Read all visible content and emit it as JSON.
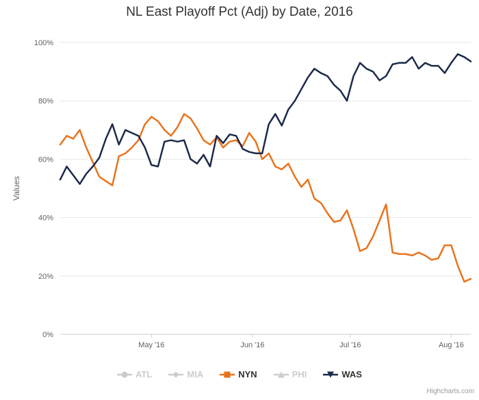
{
  "chart_data": {
    "type": "line",
    "title": "NL East Playoff Pct (Adj) by Date, 2016",
    "ylabel": "Values",
    "ylim": [
      0,
      100
    ],
    "grid": "horizontal",
    "legend_position": "bottom",
    "credits": "Highcharts.com",
    "yticks": [
      {
        "value": 0,
        "label": "0%"
      },
      {
        "value": 20,
        "label": "20%"
      },
      {
        "value": 40,
        "label": "40%"
      },
      {
        "value": 60,
        "label": "60%"
      },
      {
        "value": 80,
        "label": "80%"
      },
      {
        "value": 100,
        "label": "100%"
      }
    ],
    "xticks": [
      {
        "day": 28,
        "label": "May '16"
      },
      {
        "day": 59,
        "label": "Jun '16"
      },
      {
        "day": 89,
        "label": "Jul '16"
      },
      {
        "day": 120,
        "label": "Aug '16"
      }
    ],
    "dates": [
      "Apr 3",
      "Apr 5",
      "Apr 7",
      "Apr 9",
      "Apr 11",
      "Apr 13",
      "Apr 15",
      "Apr 17",
      "Apr 19",
      "Apr 21",
      "Apr 23",
      "Apr 25",
      "Apr 27",
      "Apr 29",
      "May 1",
      "May 3",
      "May 5",
      "May 7",
      "May 9",
      "May 11",
      "May 13",
      "May 15",
      "May 17",
      "May 19",
      "May 21",
      "May 23",
      "May 25",
      "May 27",
      "May 29",
      "May 31",
      "Jun 2",
      "Jun 4",
      "Jun 6",
      "Jun 8",
      "Jun 10",
      "Jun 12",
      "Jun 14",
      "Jun 16",
      "Jun 18",
      "Jun 20",
      "Jun 22",
      "Jun 24",
      "Jun 26",
      "Jun 28",
      "Jun 30",
      "Jul 2",
      "Jul 4",
      "Jul 6",
      "Jul 8",
      "Jul 10",
      "Jul 12",
      "Jul 14",
      "Jul 16",
      "Jul 18",
      "Jul 20",
      "Jul 22",
      "Jul 24",
      "Jul 26",
      "Jul 28",
      "Jul 30",
      "Aug 1",
      "Aug 3",
      "Aug 5",
      "Aug 7"
    ],
    "series": [
      {
        "name": "ATL",
        "color": "#cccccc",
        "marker": "circle",
        "visible": false,
        "values": []
      },
      {
        "name": "MIA",
        "color": "#cccccc",
        "marker": "diamond",
        "visible": false,
        "values": []
      },
      {
        "name": "NYN",
        "color": "#e8731c",
        "marker": "square",
        "visible": true,
        "values": [
          65,
          68,
          67,
          70,
          64,
          59,
          54,
          52.5,
          51,
          61,
          62,
          64,
          66.5,
          72,
          74.5,
          73,
          70,
          68,
          71,
          75.5,
          74,
          70.5,
          66.5,
          65,
          67.5,
          64,
          66,
          66.5,
          64.5,
          69,
          66,
          60,
          62,
          57.5,
          56.5,
          58.5,
          54,
          50.5,
          53,
          46.5,
          45,
          41.5,
          38.5,
          39,
          42.5,
          36,
          28.5,
          29.5,
          33.5,
          39,
          44.5,
          28,
          27.5,
          27.5,
          27,
          28,
          27,
          25.5,
          26,
          30.5,
          30.5,
          23.5,
          18,
          19
        ]
      },
      {
        "name": "PHI",
        "color": "#cccccc",
        "marker": "triangle",
        "visible": false,
        "values": []
      },
      {
        "name": "WAS",
        "color": "#1b2a4a",
        "marker": "triangle-down",
        "visible": true,
        "values": [
          53,
          57.5,
          54.5,
          51.5,
          55,
          57.5,
          60.5,
          67,
          72,
          65,
          70,
          69,
          68,
          64,
          58,
          57.5,
          66,
          66.5,
          66,
          66.5,
          60,
          58.5,
          61.5,
          57.5,
          68,
          65.5,
          68.5,
          68,
          63.5,
          62.5,
          62,
          62,
          72,
          75.5,
          71.5,
          77,
          80,
          84,
          88,
          91,
          89.5,
          88.5,
          85.5,
          83.5,
          80,
          88.5,
          93,
          91,
          90,
          87,
          88.5,
          92.5,
          93,
          93,
          95,
          91,
          93,
          92,
          92,
          89.5,
          93,
          96,
          95,
          93.5
        ]
      }
    ]
  }
}
